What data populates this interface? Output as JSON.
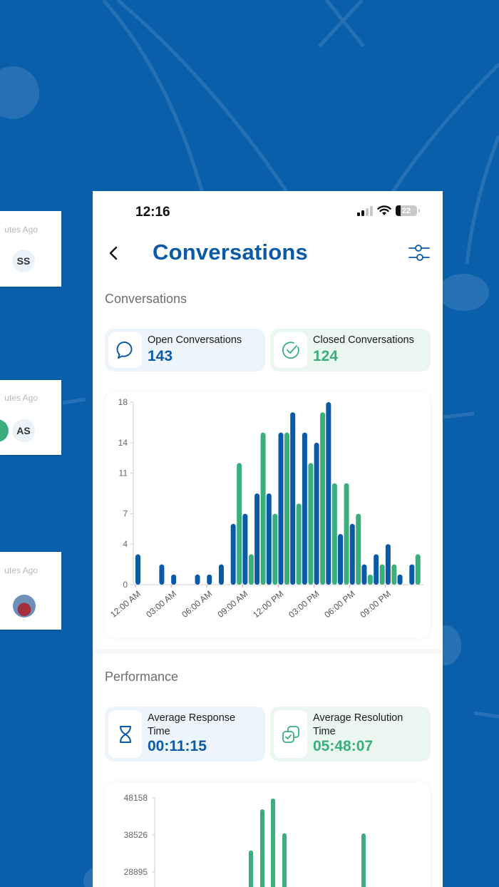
{
  "background": {
    "color": "#0a5fab",
    "side_cards": [
      {
        "time_ago": "utes Ago",
        "avatar_initials": "SS"
      },
      {
        "time_ago": "utes Ago",
        "avatar_initials": "AS"
      },
      {
        "time_ago": "utes Ago",
        "avatar_initials": ""
      }
    ]
  },
  "status_bar": {
    "time": "12:16",
    "battery_level": "22"
  },
  "header": {
    "title": "Conversations",
    "back_icon": "chevron-left-icon",
    "filter_icon": "sliders-icon"
  },
  "conversations_section": {
    "title": "Conversations",
    "cards": [
      {
        "label": "Open Conversations",
        "value": "143",
        "icon": "chat-bubble-icon",
        "accent": "#0b5aa8"
      },
      {
        "label": "Closed Conversations",
        "value": "124",
        "icon": "check-circle-icon",
        "accent": "#3bae7e"
      }
    ]
  },
  "performance_section": {
    "title": "Performance",
    "cards": [
      {
        "label_line1": "Average Response",
        "label_line2": "Time",
        "value": "00:11:15",
        "icon": "hourglass-icon",
        "accent": "#0b5aa8"
      },
      {
        "label_line1": "Average Resolution",
        "label_line2": "Time",
        "value": "05:48:07",
        "icon": "copy-check-icon",
        "accent": "#3bae7e"
      }
    ]
  },
  "chart_data": [
    {
      "type": "bar",
      "title": "Conversations by hour",
      "xlabel": "",
      "ylabel": "",
      "ylim": [
        0,
        18
      ],
      "yticks": [
        0,
        4,
        7,
        11,
        14,
        18
      ],
      "xtick_labels": [
        "12:00 AM",
        "03:00 AM",
        "06:00 AM",
        "09:00 AM",
        "12:00 PM",
        "03:00 PM",
        "06:00 PM",
        "09:00 PM"
      ],
      "categories": [
        "0",
        "1",
        "2",
        "3",
        "4",
        "5",
        "6",
        "7",
        "8",
        "9",
        "10",
        "11",
        "12",
        "13",
        "14",
        "15",
        "16",
        "17",
        "18",
        "19",
        "20",
        "21",
        "22",
        "23"
      ],
      "series": [
        {
          "name": "Open",
          "color": "#0b5aa8",
          "values": [
            3,
            0,
            2,
            1,
            0,
            1,
            1,
            2,
            6,
            7,
            9,
            9,
            15,
            17,
            15,
            14,
            18,
            5,
            6,
            2,
            3,
            4,
            1,
            2
          ]
        },
        {
          "name": "Closed",
          "color": "#3bae7e",
          "values": [
            0,
            0,
            0,
            0,
            0,
            0,
            0,
            0,
            12,
            3,
            15,
            7,
            15,
            8,
            12,
            17,
            10,
            10,
            7,
            1,
            2,
            2,
            0,
            3
          ]
        }
      ],
      "grid": false,
      "legend": "none"
    },
    {
      "type": "bar",
      "title": "Performance",
      "xlabel": "",
      "ylabel": "",
      "yticks": [
        28895,
        38526,
        48158
      ],
      "series": [
        {
          "name": "Resolution",
          "color": "#3bae7e",
          "values_partial_visible": [
            34500,
            45200,
            48000,
            39000,
            38900
          ]
        }
      ],
      "grid": false,
      "legend": "none"
    }
  ]
}
